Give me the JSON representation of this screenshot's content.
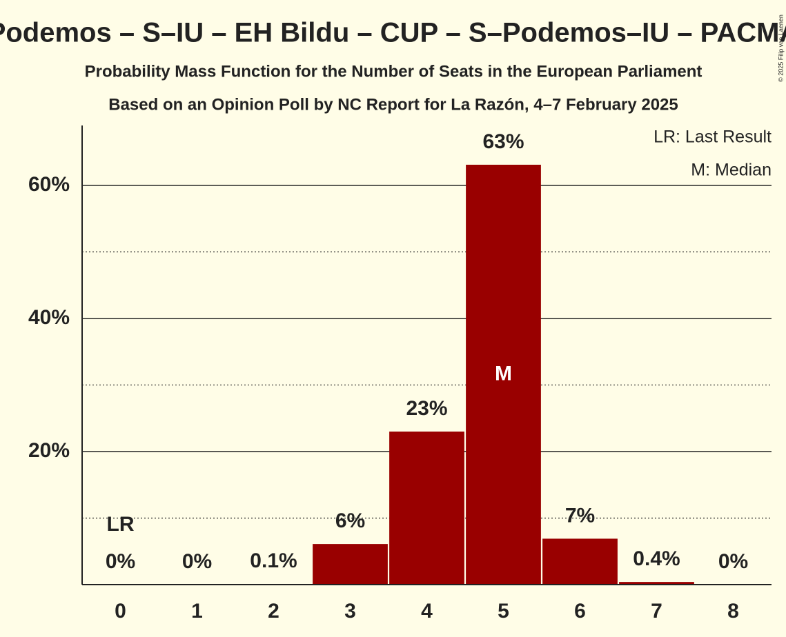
{
  "chart_data": {
    "type": "bar",
    "title": "Podemos – S–IU – EH Bildu – CUP – S–Podemos–IU – PACMA",
    "subtitle": "Probability Mass Function for the Number of Seats in the European Parliament",
    "subtitle2": "Based on an Opinion Poll by NC Report for La Razón, 4–7 February 2025",
    "categories": [
      "0",
      "1",
      "2",
      "3",
      "4",
      "5",
      "6",
      "7",
      "8"
    ],
    "values": [
      0,
      0,
      0.1,
      6.1,
      23.0,
      63.1,
      6.9,
      0.4,
      0
    ],
    "value_labels": [
      "0%",
      "0%",
      "0.1%",
      "6%",
      "23%",
      "63%",
      "7%",
      "0.4%",
      "0%"
    ],
    "color": "#990000",
    "ylim": [
      0,
      69
    ],
    "yticks": [
      {
        "value": 20,
        "label": "20%"
      },
      {
        "value": 40,
        "label": "40%"
      },
      {
        "value": 60,
        "label": "60%"
      }
    ],
    "minor_grid": [
      10,
      30,
      50
    ],
    "grid": true,
    "last_result": {
      "index": 0,
      "label": "LR"
    },
    "median": {
      "index": 5,
      "label": "M"
    },
    "legend": [
      "LR: Last Result",
      "M: Median"
    ],
    "copyright": "© 2025 Filip van Laenen"
  }
}
